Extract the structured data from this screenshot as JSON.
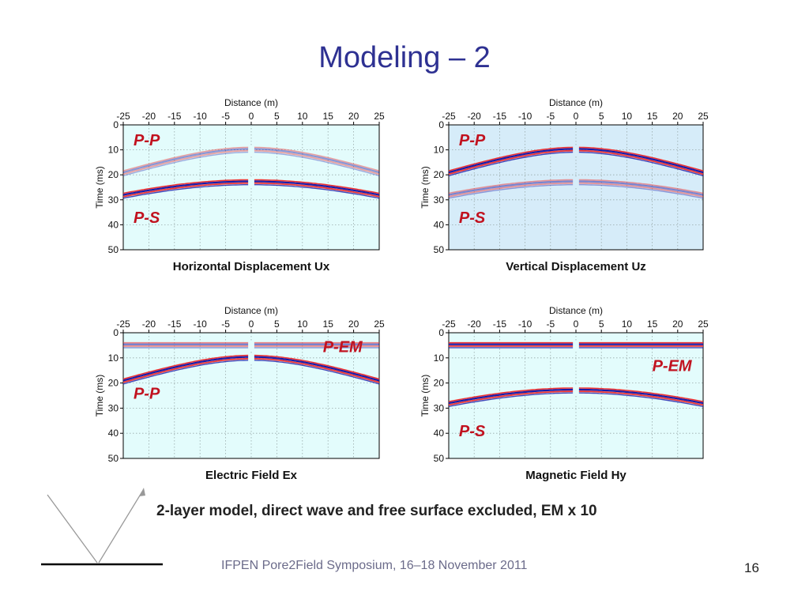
{
  "title": "Modeling – 2",
  "caption": "2-layer model, direct wave and free surface excluded, EM x 10",
  "footer": "IFPEN Pore2Field Symposium, 16–18 November 2011",
  "page_number": "16",
  "colors": {
    "title": "#2e3192",
    "wave_label": "#c1121f",
    "panel_bg": "#e3fcfc",
    "panel_bg_alt": "#d6ecf9"
  },
  "chart_data": [
    {
      "type": "line",
      "title": "Horizontal Displacement Ux",
      "xlabel": "Distance (m)",
      "ylabel": "Time (ms)",
      "xlim": [
        -25,
        25
      ],
      "ylim": [
        0,
        50
      ],
      "x_ticks": [
        "-25",
        "-20",
        "-15",
        "-10",
        "-5",
        "0",
        "5",
        "10",
        "15",
        "20",
        "25"
      ],
      "y_ticks": [
        "0",
        "10",
        "20",
        "30",
        "40",
        "50"
      ],
      "grid": true,
      "background": "#e3fcfc",
      "annotations": [
        {
          "text": "P-P",
          "x": -23,
          "y": 6
        },
        {
          "text": "P-S",
          "x": -23,
          "y": 37
        }
      ],
      "series": [
        {
          "kind": "hyperbola",
          "t0": 10,
          "v": 1.5,
          "x": [
            -25,
            25
          ],
          "strength": 0.45
        },
        {
          "kind": "hyperbola",
          "t0": 23,
          "v": 1.5,
          "x": [
            -25,
            25
          ],
          "strength": 1.0
        }
      ]
    },
    {
      "type": "line",
      "title": "Vertical Displacement Uz",
      "xlabel": "Distance (m)",
      "ylabel": "Time (ms)",
      "xlim": [
        -25,
        25
      ],
      "ylim": [
        0,
        50
      ],
      "x_ticks": [
        "-25",
        "-20",
        "-15",
        "-10",
        "-5",
        "0",
        "5",
        "10",
        "15",
        "20",
        "25"
      ],
      "y_ticks": [
        "0",
        "10",
        "20",
        "30",
        "40",
        "50"
      ],
      "grid": true,
      "background": "#d6ecf9",
      "annotations": [
        {
          "text": "P-P",
          "x": -23,
          "y": 6
        },
        {
          "text": "P-S",
          "x": -23,
          "y": 37
        }
      ],
      "series": [
        {
          "kind": "hyperbola",
          "t0": 10,
          "v": 1.5,
          "x": [
            -25,
            25
          ],
          "strength": 1.0
        },
        {
          "kind": "hyperbola",
          "t0": 23,
          "v": 1.5,
          "x": [
            -25,
            25
          ],
          "strength": 0.5
        }
      ]
    },
    {
      "type": "line",
      "title": "Electric Field Ex",
      "xlabel": "Distance (m)",
      "ylabel": "Time (ms)",
      "xlim": [
        -25,
        25
      ],
      "ylim": [
        0,
        50
      ],
      "x_ticks": [
        "-25",
        "-20",
        "-15",
        "-10",
        "-5",
        "0",
        "5",
        "10",
        "15",
        "20",
        "25"
      ],
      "y_ticks": [
        "0",
        "10",
        "20",
        "30",
        "40",
        "50"
      ],
      "grid": true,
      "background": "#e3fcfc",
      "annotations": [
        {
          "text": "P-EM",
          "x": 14,
          "y": 5.5
        },
        {
          "text": "P-P",
          "x": -23,
          "y": 24
        }
      ],
      "series": [
        {
          "kind": "flat",
          "t0": 5,
          "x": [
            -25,
            25
          ],
          "strength": 0.6
        },
        {
          "kind": "hyperbola",
          "t0": 10,
          "v": 1.5,
          "x": [
            -25,
            25
          ],
          "strength": 1.0
        }
      ]
    },
    {
      "type": "line",
      "title": "Magnetic Field  Hy",
      "xlabel": "Distance (m)",
      "ylabel": "Time (ms)",
      "xlim": [
        -25,
        25
      ],
      "ylim": [
        0,
        50
      ],
      "x_ticks": [
        "-25",
        "-20",
        "-15",
        "-10",
        "-5",
        "0",
        "5",
        "10",
        "15",
        "20",
        "25"
      ],
      "y_ticks": [
        "0",
        "10",
        "20",
        "30",
        "40",
        "50"
      ],
      "grid": true,
      "background": "#e3fcfc",
      "annotations": [
        {
          "text": "P-EM",
          "x": 15,
          "y": 13
        },
        {
          "text": "P-S",
          "x": -23,
          "y": 39
        }
      ],
      "series": [
        {
          "kind": "flat",
          "t0": 5,
          "x": [
            -25,
            25
          ],
          "strength": 1.0
        },
        {
          "kind": "hyperbola",
          "t0": 23,
          "v": 1.5,
          "x": [
            -25,
            25
          ],
          "strength": 1.0
        }
      ]
    }
  ]
}
